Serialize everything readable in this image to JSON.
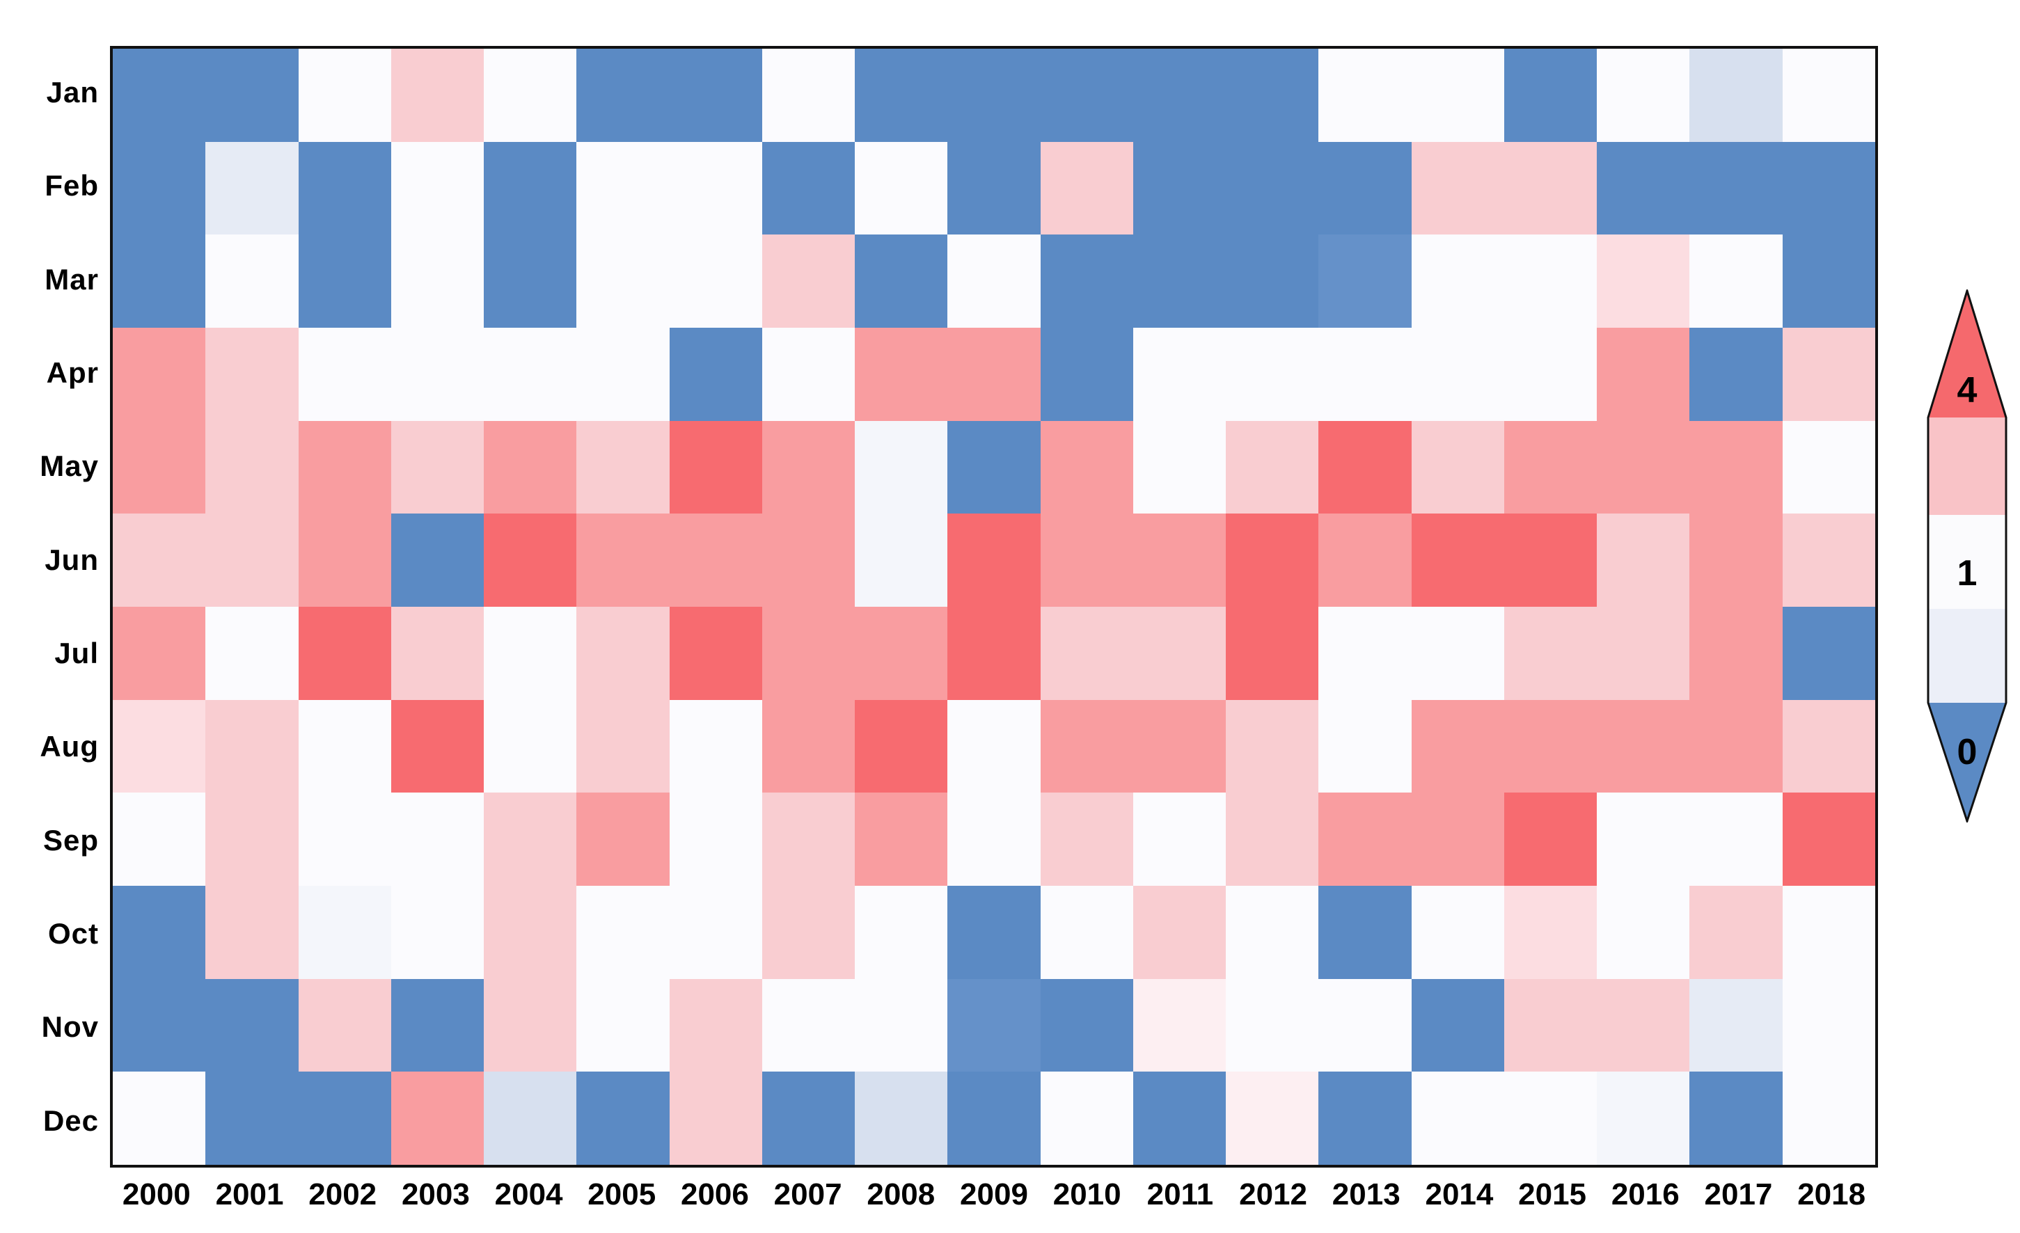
{
  "chart_data": {
    "type": "heatmap",
    "title": "",
    "xlabel": "",
    "ylabel": "",
    "x_categories": [
      "2000",
      "2001",
      "2002",
      "2003",
      "2004",
      "2005",
      "2006",
      "2007",
      "2008",
      "2009",
      "2010",
      "2011",
      "2012",
      "2013",
      "2014",
      "2015",
      "2016",
      "2017",
      "2018"
    ],
    "y_categories": [
      "Jan",
      "Feb",
      "Mar",
      "Apr",
      "May",
      "Jun",
      "Jul",
      "Aug",
      "Sep",
      "Oct",
      "Nov",
      "Dec"
    ],
    "palette": {
      "B": "#5b8ac4",
      "B2": "#6591c9",
      "LB": "#d7e0ef",
      "VLB": "#e6ebf5",
      "BW": "#f4f6fb",
      "W": "#fbfbfe",
      "P1": "#fdeff2",
      "P2": "#fcdde1",
      "P3": "#f9cdd1",
      "S": "#f99da0",
      "R": "#f76b70"
    },
    "approx_value_by_level": {
      "B": 0,
      "B2": 0.2,
      "LB": 0.5,
      "VLB": 0.7,
      "BW": 0.9,
      "W": 1,
      "P1": 1.3,
      "P2": 1.6,
      "P3": 2,
      "S": 3,
      "R": 4
    },
    "levels": [
      [
        "B",
        "B",
        "W",
        "P3",
        "W",
        "B",
        "B",
        "W",
        "B",
        "B",
        "B",
        "B",
        "B",
        "W",
        "W",
        "B",
        "W",
        "LB",
        "W"
      ],
      [
        "B",
        "VLB",
        "B",
        "W",
        "B",
        "W",
        "W",
        "B",
        "W",
        "B",
        "P3",
        "B",
        "B",
        "B",
        "P3",
        "P3",
        "B",
        "B",
        "B"
      ],
      [
        "B",
        "W",
        "B",
        "W",
        "B",
        "W",
        "W",
        "P3",
        "B",
        "W",
        "B",
        "B",
        "B",
        "B2",
        "W",
        "W",
        "P2",
        "W",
        "B"
      ],
      [
        "S",
        "P3",
        "W",
        "W",
        "W",
        "W",
        "B",
        "W",
        "S",
        "S",
        "B",
        "W",
        "W",
        "W",
        "W",
        "W",
        "S",
        "B",
        "P3"
      ],
      [
        "S",
        "P3",
        "S",
        "P3",
        "S",
        "P3",
        "R",
        "S",
        "BW",
        "B",
        "S",
        "W",
        "P3",
        "R",
        "P3",
        "S",
        "S",
        "S",
        "W"
      ],
      [
        "P3",
        "P3",
        "S",
        "B",
        "R",
        "S",
        "S",
        "S",
        "BW",
        "R",
        "S",
        "S",
        "R",
        "S",
        "R",
        "R",
        "P3",
        "S",
        "P3"
      ],
      [
        "S",
        "W",
        "R",
        "P3",
        "W",
        "P3",
        "R",
        "S",
        "S",
        "R",
        "P3",
        "P3",
        "R",
        "W",
        "W",
        "P3",
        "P3",
        "S",
        "B"
      ],
      [
        "P2",
        "P3",
        "W",
        "R",
        "W",
        "P3",
        "W",
        "S",
        "R",
        "W",
        "S",
        "S",
        "P3",
        "W",
        "S",
        "S",
        "S",
        "S",
        "P3"
      ],
      [
        "W",
        "P3",
        "W",
        "W",
        "P3",
        "S",
        "W",
        "P3",
        "S",
        "W",
        "P3",
        "W",
        "P3",
        "S",
        "S",
        "R",
        "W",
        "W",
        "R"
      ],
      [
        "B",
        "P3",
        "BW",
        "W",
        "P3",
        "W",
        "W",
        "P3",
        "W",
        "B",
        "W",
        "P3",
        "W",
        "B",
        "W",
        "P2",
        "W",
        "P3",
        "W"
      ],
      [
        "B",
        "B",
        "P3",
        "B",
        "P3",
        "W",
        "P3",
        "W",
        "W",
        "B2",
        "B",
        "P1",
        "W",
        "W",
        "B",
        "P3",
        "P3",
        "VLB",
        "W"
      ],
      [
        "W",
        "B",
        "B",
        "S",
        "LB",
        "B",
        "P3",
        "B",
        "LB",
        "B",
        "W",
        "B",
        "P1",
        "B",
        "W",
        "W",
        "BW",
        "B",
        "W"
      ]
    ],
    "legend": {
      "position": "right",
      "labels": {
        "max": "4",
        "mid": "1",
        "min": "0"
      },
      "segment_colors": {
        "red_tip": "#f5696d",
        "pink_band": "#f9c3c7",
        "white_band": "#fbfbfd",
        "blue_band": "#eceff8",
        "blue_tip": "#5b8ac4"
      },
      "outline_color": "#111111"
    },
    "grid": "off",
    "plot_border_color": "#111111"
  }
}
